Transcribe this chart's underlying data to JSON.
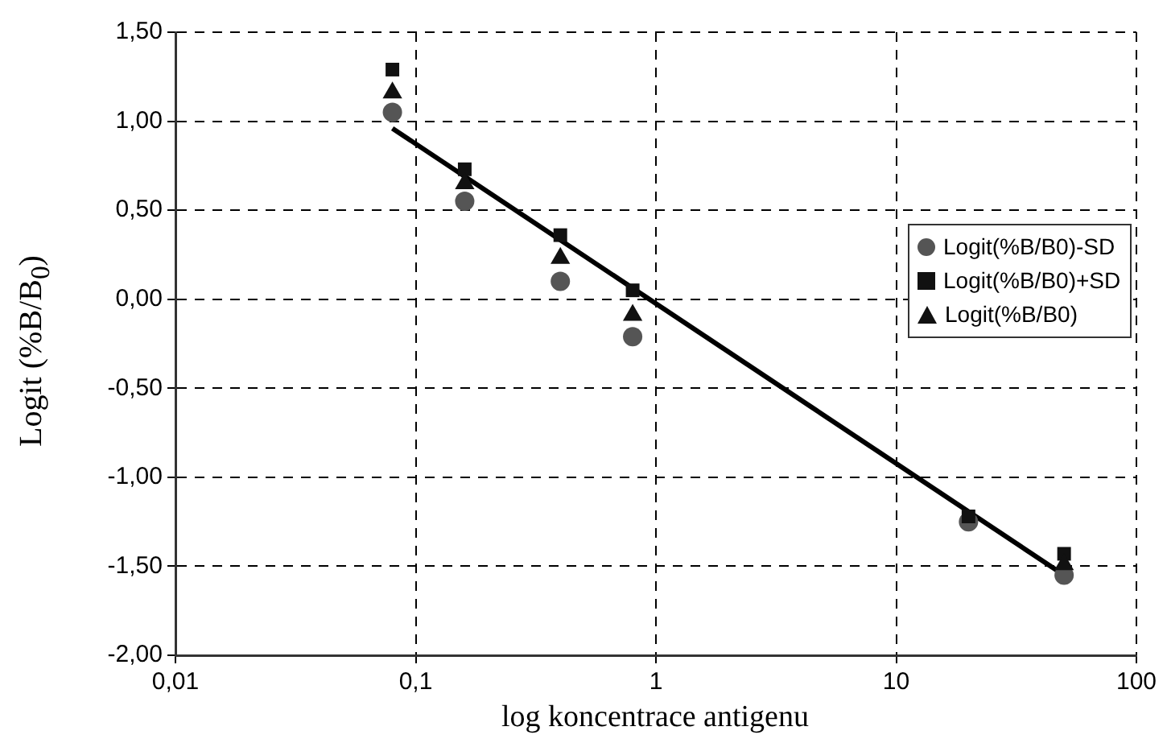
{
  "chart_data": {
    "type": "scatter",
    "xlabel": "log koncentrace antigenu",
    "ylabel": "Logit (%B/B$_{0}$)",
    "log": "x",
    "grid": true,
    "legend": "right",
    "xlim": [
      0.01,
      100
    ],
    "xticks": [
      {
        "value": 0.01,
        "label": "0,01"
      },
      {
        "value": 0.1,
        "label": "0,1"
      },
      {
        "value": 1,
        "label": "1"
      },
      {
        "value": 10,
        "label": "10"
      },
      {
        "value": 100,
        "label": "100"
      }
    ],
    "ylim": [
      -2,
      1.5
    ],
    "yticks": [
      {
        "value": -2,
        "label": "-2,00"
      },
      {
        "value": -1.5,
        "label": "-1,50"
      },
      {
        "value": -1,
        "label": "-1,00"
      },
      {
        "value": -0.5,
        "label": "-0,50"
      },
      {
        "value": 0,
        "label": "0,00"
      },
      {
        "value": 0.5,
        "label": "0,50"
      },
      {
        "value": 1,
        "label": "1,00"
      },
      {
        "value": 1.5,
        "label": "1,50"
      }
    ],
    "x": [
      0.08,
      0.16,
      0.4,
      0.8,
      20,
      50
    ],
    "series": [
      {
        "name": "Logit(%B/B0)-SD",
        "color": "#555555",
        "marker": "circle",
        "values": [
          1.05,
          0.55,
          0.1,
          -0.21,
          -1.25,
          -1.55
        ]
      },
      {
        "name": "Logit(%B/B0)+SD",
        "color": "#111111",
        "marker": "square",
        "values": [
          1.29,
          0.73,
          0.36,
          0.05,
          -1.22,
          -1.43
        ]
      },
      {
        "name": "Logit(%B/B0)",
        "color": "#111111",
        "marker": "triangle",
        "values": [
          1.16,
          0.65,
          0.23,
          -0.09,
          null,
          -1.49
        ]
      },
      {
        "type": "line",
        "color": "#000000",
        "marker": "none",
        "line_style": "solid",
        "x": [
          0.08,
          50
        ],
        "values": [
          0.96,
          -1.55
        ]
      }
    ]
  }
}
